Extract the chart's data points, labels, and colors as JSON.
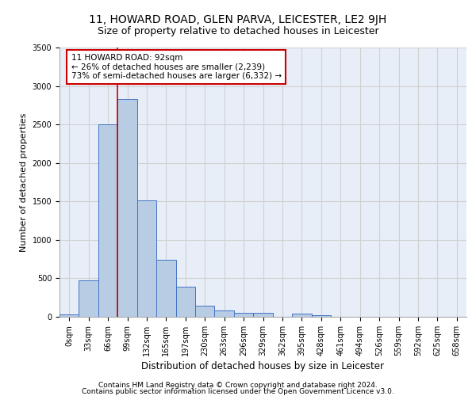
{
  "title": "11, HOWARD ROAD, GLEN PARVA, LEICESTER, LE2 9JH",
  "subtitle": "Size of property relative to detached houses in Leicester",
  "xlabel": "Distribution of detached houses by size in Leicester",
  "ylabel": "Number of detached properties",
  "bar_categories": [
    "0sqm",
    "33sqm",
    "66sqm",
    "99sqm",
    "132sqm",
    "165sqm",
    "197sqm",
    "230sqm",
    "263sqm",
    "296sqm",
    "329sqm",
    "362sqm",
    "395sqm",
    "428sqm",
    "461sqm",
    "494sqm",
    "526sqm",
    "559sqm",
    "592sqm",
    "625sqm",
    "658sqm"
  ],
  "bar_values": [
    30,
    470,
    2500,
    2830,
    1510,
    740,
    390,
    145,
    80,
    55,
    55,
    0,
    45,
    20,
    0,
    0,
    0,
    0,
    0,
    0,
    0
  ],
  "bar_color": "#b8cce4",
  "bar_edge_color": "#4472c4",
  "property_label": "11 HOWARD ROAD: 92sqm",
  "annotation_line1": "← 26% of detached houses are smaller (2,239)",
  "annotation_line2": "73% of semi-detached houses are larger (6,332) →",
  "annotation_box_color": "#ffffff",
  "annotation_box_edge": "#cc0000",
  "red_line_color": "#cc0000",
  "ylim": [
    0,
    3500
  ],
  "yticks": [
    0,
    500,
    1000,
    1500,
    2000,
    2500,
    3000,
    3500
  ],
  "grid_color": "#d0d0d0",
  "bg_color": "#e8eef8",
  "footer1": "Contains HM Land Registry data © Crown copyright and database right 2024.",
  "footer2": "Contains public sector information licensed under the Open Government Licence v3.0.",
  "title_fontsize": 10,
  "subtitle_fontsize": 9,
  "xlabel_fontsize": 8.5,
  "ylabel_fontsize": 8,
  "tick_fontsize": 7,
  "footer_fontsize": 6.5
}
